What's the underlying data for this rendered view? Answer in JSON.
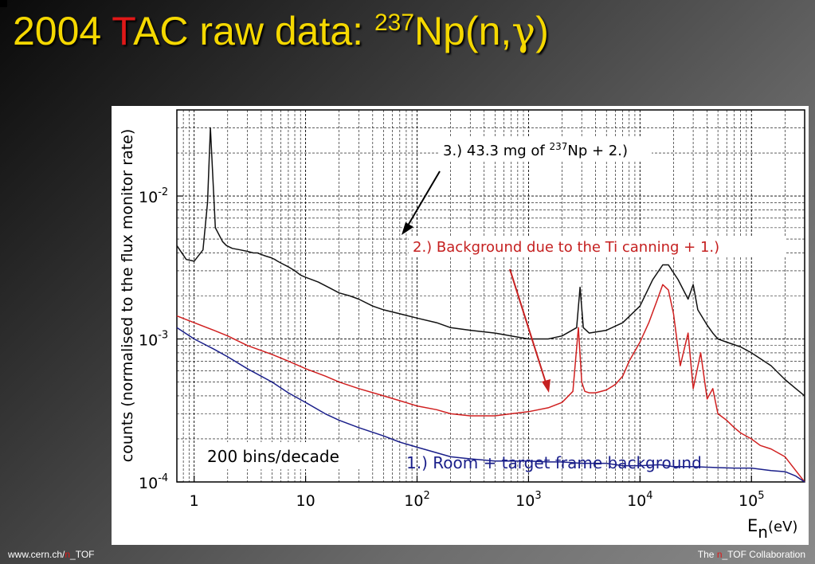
{
  "title": {
    "part1": "2004 ",
    "red_letter": "T",
    "part2": "AC raw data: ",
    "isotope_mass": "237",
    "isotope": "Np(n,",
    "gamma": "γ",
    "close": ")"
  },
  "footer": {
    "left_prefix": "www.cern.ch/",
    "left_red": "n",
    "left_suffix": "_TOF",
    "right_prefix": "The ",
    "right_red": "n",
    "right_suffix": "_TOF Collaboration"
  },
  "colors": {
    "title": "#f5d800",
    "accent_red": "#e01818",
    "sample": "#111111",
    "ti_background": "#d02020",
    "room_background": "#1a1f8a"
  },
  "chart_data": {
    "type": "line",
    "x_scale": "log",
    "y_scale": "log",
    "xlim": [
      0.7,
      300000
    ],
    "ylim": [
      0.0001,
      0.04
    ],
    "ylabel": "counts (normalised to the flux monitor rate)",
    "xlabel": {
      "main": "E",
      "sub": "n",
      "unit": "(eV)"
    },
    "x_ticks": [
      {
        "value": 1,
        "label": "1"
      },
      {
        "value": 10,
        "label": "10"
      },
      {
        "value": 100,
        "label": "10",
        "exp": "2"
      },
      {
        "value": 1000,
        "label": "10",
        "exp": "3"
      },
      {
        "value": 10000,
        "label": "10",
        "exp": "4"
      },
      {
        "value": 100000,
        "label": "10",
        "exp": "5"
      }
    ],
    "y_ticks": [
      {
        "value": 0.0001,
        "label": "10",
        "exp": "-4"
      },
      {
        "value": 0.001,
        "label": "10",
        "exp": "-3"
      },
      {
        "value": 0.01,
        "label": "10",
        "exp": "-2"
      }
    ],
    "grid": true,
    "annotations": {
      "bins": "200 bins/decade",
      "sample": {
        "pre": "3.) 43.3 mg of ",
        "sup": "237",
        "post": "Np + 2.)"
      },
      "ti": "2.) Background due to the Ti canning + 1.)",
      "room": "1.) Room + target frame background"
    },
    "series": [
      {
        "color": "#111111",
        "x": [
          0.7,
          0.85,
          1.0,
          1.2,
          1.32,
          1.4,
          1.55,
          1.8,
          1.95,
          2.2,
          2.6,
          3.0,
          3.4,
          3.7,
          4.0,
          4.4,
          4.9,
          5.3,
          5.6,
          6.0,
          7.0,
          8.0,
          9.0,
          10,
          13,
          16,
          20,
          25,
          30,
          40,
          50,
          70,
          100,
          150,
          200,
          300,
          500,
          700,
          1000,
          1500,
          2000,
          2700,
          2900,
          3100,
          3500,
          5000,
          7000,
          10000,
          13000,
          16000,
          18000,
          22000,
          27000,
          30000,
          33000,
          40000,
          45000,
          50000,
          60000,
          80000,
          100000,
          150000,
          200000,
          250000,
          300000
        ],
        "y": [
          0.0045,
          0.0036,
          0.0035,
          0.0042,
          0.009,
          0.03,
          0.006,
          0.0048,
          0.0045,
          0.0043,
          0.0042,
          0.0041,
          0.004,
          0.004,
          0.0039,
          0.0038,
          0.0037,
          0.0036,
          0.0035,
          0.0034,
          0.0032,
          0.003,
          0.0028,
          0.0027,
          0.0025,
          0.0023,
          0.0021,
          0.002,
          0.0019,
          0.0017,
          0.0016,
          0.0015,
          0.0014,
          0.0013,
          0.0012,
          0.00115,
          0.0011,
          0.00105,
          0.001,
          0.001,
          0.00105,
          0.0012,
          0.0023,
          0.0012,
          0.0011,
          0.00115,
          0.0013,
          0.0017,
          0.0026,
          0.0033,
          0.0033,
          0.0026,
          0.0019,
          0.0024,
          0.0016,
          0.00125,
          0.0011,
          0.001,
          0.00095,
          0.00088,
          0.0008,
          0.00065,
          0.00052,
          0.00045,
          0.0004
        ]
      },
      {
        "color": "#d02020",
        "x": [
          0.7,
          1,
          1.5,
          2,
          3,
          5,
          7,
          10,
          15,
          20,
          30,
          50,
          70,
          100,
          150,
          200,
          300,
          500,
          700,
          1000,
          1500,
          2000,
          2500,
          2800,
          3000,
          3200,
          3500,
          4000,
          5000,
          6000,
          7000,
          8000,
          10000,
          12000,
          14000,
          16000,
          18000,
          20000,
          23000,
          27000,
          30000,
          35000,
          40000,
          45000,
          50000,
          60000,
          70000,
          80000,
          100000,
          120000,
          150000,
          200000,
          250000,
          300000
        ],
        "y": [
          0.00145,
          0.0013,
          0.00115,
          0.00105,
          0.0009,
          0.00078,
          0.0007,
          0.00062,
          0.00055,
          0.0005,
          0.00045,
          0.0004,
          0.00037,
          0.00034,
          0.00032,
          0.0003,
          0.00029,
          0.00029,
          0.0003,
          0.00031,
          0.00033,
          0.00036,
          0.00043,
          0.0012,
          0.0005,
          0.00043,
          0.00042,
          0.00042,
          0.00044,
          0.00048,
          0.00055,
          0.0007,
          0.00095,
          0.0013,
          0.0018,
          0.0024,
          0.0022,
          0.0015,
          0.00065,
          0.0011,
          0.00045,
          0.0008,
          0.00038,
          0.00045,
          0.0003,
          0.00027,
          0.00024,
          0.00022,
          0.0002,
          0.00018,
          0.00017,
          0.00015,
          0.00012,
          0.0001
        ]
      },
      {
        "color": "#1a1f8a",
        "x": [
          0.7,
          1,
          1.5,
          2,
          3,
          5,
          7,
          10,
          15,
          20,
          30,
          50,
          70,
          100,
          150,
          200,
          300,
          500,
          700,
          1000,
          1500,
          2000,
          3000,
          5000,
          7000,
          10000,
          15000,
          20000,
          30000,
          50000,
          70000,
          100000,
          150000,
          200000,
          250000,
          300000
        ],
        "y": [
          0.0012,
          0.001,
          0.00085,
          0.00075,
          0.00062,
          0.0005,
          0.00042,
          0.00036,
          0.0003,
          0.00027,
          0.00024,
          0.00021,
          0.00019,
          0.000175,
          0.00016,
          0.00015,
          0.000145,
          0.00014,
          0.00014,
          0.00014,
          0.000138,
          0.000138,
          0.000135,
          0.000135,
          0.00013,
          0.00013,
          0.000132,
          0.000128,
          0.000128,
          0.000126,
          0.000125,
          0.000125,
          0.00012,
          0.000118,
          0.00011,
          0.0001
        ]
      }
    ]
  }
}
